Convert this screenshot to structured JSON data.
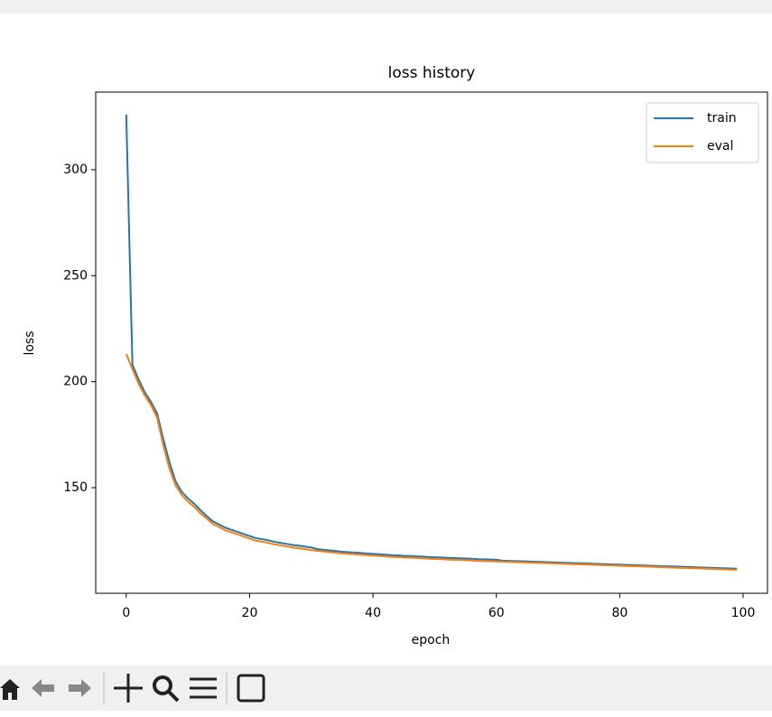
{
  "chart_data": {
    "type": "line",
    "title": "loss history",
    "x_label": "epoch",
    "y_label": "loss",
    "x": [
      0,
      1,
      2,
      3,
      4,
      5,
      6,
      7,
      8,
      9,
      10,
      11,
      12,
      13,
      14,
      15,
      16,
      17,
      18,
      19,
      20,
      21,
      22,
      23,
      24,
      25,
      26,
      27,
      28,
      29,
      30,
      31,
      32,
      33,
      34,
      35,
      36,
      37,
      38,
      39,
      40,
      41,
      42,
      43,
      44,
      45,
      46,
      47,
      48,
      49,
      50,
      51,
      52,
      53,
      54,
      55,
      56,
      57,
      58,
      59,
      60,
      61,
      62,
      63,
      64,
      65,
      66,
      67,
      68,
      69,
      70,
      71,
      72,
      73,
      74,
      75,
      76,
      77,
      78,
      79,
      80,
      81,
      82,
      83,
      84,
      85,
      86,
      87,
      88,
      89,
      90,
      91,
      92,
      93,
      94,
      95,
      96,
      97,
      98,
      99
    ],
    "series": [
      {
        "name": "train",
        "color": "#1f77b4",
        "values": [
          326,
          208,
          201,
          195,
          190.5,
          185,
          173,
          162,
          153,
          148,
          145,
          142.5,
          139.5,
          136.7,
          134.2,
          132.7,
          131.2,
          130.2,
          129.2,
          128.2,
          127.2,
          126.2,
          125.7,
          125.2,
          124.5,
          124,
          123.5,
          123,
          122.6,
          122.2,
          121.8,
          121,
          120.7,
          120.4,
          120.1,
          119.8,
          119.6,
          119.4,
          119.2,
          119,
          118.8,
          118.6,
          118.4,
          118.2,
          118.1,
          117.9,
          117.8,
          117.6,
          117.5,
          117.3,
          117.2,
          117.1,
          116.9,
          116.8,
          116.7,
          116.6,
          116.5,
          116.3,
          116.2,
          116.1,
          116,
          115.6,
          115.5,
          115.4,
          115.3,
          115.2,
          115.1,
          115,
          114.9,
          114.8,
          114.7,
          114.6,
          114.5,
          114.4,
          114.3,
          114.2,
          114.1,
          114,
          113.9,
          113.8,
          113.7,
          113.6,
          113.5,
          113.4,
          113.3,
          113.2,
          113.1,
          113,
          112.9,
          112.8,
          112.7,
          112.6,
          112.5,
          112.4,
          112.3,
          112.2,
          112.1,
          112,
          111.9,
          111.8
        ]
      },
      {
        "name": "eval",
        "color": "#ff7f0e",
        "values": [
          213,
          206,
          199,
          193.5,
          189,
          183,
          170,
          159,
          151,
          146.5,
          143.5,
          141,
          138,
          135.5,
          133,
          131.5,
          130,
          129,
          128,
          127,
          126,
          125,
          124.5,
          124,
          123.3,
          122.8,
          122.3,
          121.8,
          121.4,
          121,
          120.6,
          120.2,
          119.9,
          119.6,
          119.3,
          119,
          118.8,
          118.6,
          118.4,
          118.2,
          118,
          117.8,
          117.6,
          117.4,
          117.3,
          117.1,
          117,
          116.8,
          116.7,
          116.5,
          116.4,
          116.3,
          116.1,
          116,
          115.9,
          115.8,
          115.7,
          115.5,
          115.4,
          115.3,
          115.2,
          115.1,
          115,
          114.9,
          114.8,
          114.7,
          114.6,
          114.5,
          114.4,
          114.3,
          114.2,
          114.1,
          114,
          113.9,
          113.8,
          113.7,
          113.6,
          113.5,
          113.4,
          113.3,
          113.2,
          113.1,
          113,
          112.9,
          112.8,
          112.7,
          112.6,
          112.5,
          112.4,
          112.3,
          112.2,
          112.1,
          112,
          111.9,
          111.8,
          111.7,
          111.6,
          111.5,
          111.4,
          111.3
        ]
      }
    ],
    "xlim": [
      -4.95,
      103.95
    ],
    "ylim": [
      100.2,
      336.6
    ],
    "xticks": [
      0,
      20,
      40,
      60,
      80,
      100
    ],
    "yticks": [
      150,
      200,
      250,
      300
    ],
    "grid": false,
    "legend": "upper right"
  }
}
